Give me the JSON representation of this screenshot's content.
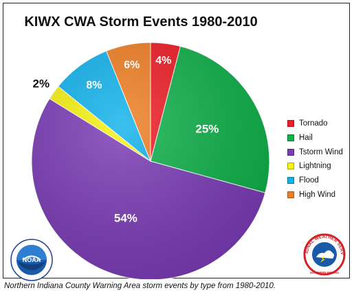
{
  "chart_data": {
    "type": "pie",
    "title": "KIWX CWA Storm Events 1980-2010",
    "slices": [
      {
        "name": "Tornado",
        "value": 4,
        "label": "4%",
        "color": "#ee1c24"
      },
      {
        "name": "Hail",
        "value": 25,
        "label": "25%",
        "color": "#0fb14a"
      },
      {
        "name": "Tstorm Wind",
        "value": 54,
        "label": "54%",
        "color": "#7a3bb5"
      },
      {
        "name": "Lightning",
        "value": 2,
        "label": "2%",
        "color": "#f7f20f"
      },
      {
        "name": "Flood",
        "value": 8,
        "label": "8%",
        "color": "#10b2ec"
      },
      {
        "name": "High Wind",
        "value": 6,
        "label": "6%",
        "color": "#ef7e22"
      }
    ],
    "legend_position": "right"
  },
  "logos": {
    "left": {
      "icon": "noaa-logo",
      "text": "NOAA",
      "ring_text": "NATIONAL OCEANIC AND ATMOSPHERIC ADMINISTRATION · U.S. DEPARTMENT OF COMMERCE"
    },
    "right": {
      "icon": "nws-logo",
      "text": "NATIONAL WEATHER SERVICE",
      "subtext": "NORTHERN INDIANA"
    }
  },
  "caption": "Northern Indiana County Warning Area storm events by type from 1980-2010."
}
